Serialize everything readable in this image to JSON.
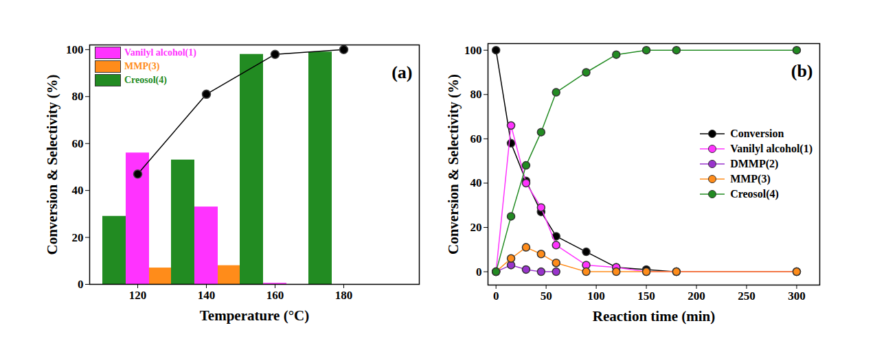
{
  "chart_data": [
    {
      "type": "bar",
      "panel_label": "(a)",
      "x_label": "Temperature (°C)",
      "y_label": "Conversion & Selectivity (%)",
      "x": [
        120,
        140,
        160,
        180
      ],
      "xlim": [
        106,
        202
      ],
      "xticks": [
        120,
        140,
        160,
        180
      ],
      "ylim": [
        0,
        102
      ],
      "yticks": [
        0,
        20,
        40,
        60,
        80,
        100
      ],
      "legend": "upper left",
      "series": [
        {
          "name": "Vanilyl alcohol(1)",
          "color": "#ff33ff",
          "values": [
            56,
            33,
            0.5,
            0
          ]
        },
        {
          "name": "MMP(3)",
          "color": "#ff8c1a",
          "values": [
            7,
            8,
            0,
            0
          ]
        },
        {
          "name": "Creosol(4)",
          "color": "#228b22",
          "values": [
            29,
            53,
            98,
            99
          ]
        }
      ],
      "overlay": {
        "type": "line",
        "color": "#000000",
        "marker": "circle",
        "line_style": "solid",
        "values": [
          47,
          81,
          98,
          100
        ]
      }
    },
    {
      "type": "line",
      "panel_label": "(b)",
      "x_label": "Reaction time (min)",
      "y_label": "Conversion & Selectivity (%)",
      "x": [
        0,
        15,
        30,
        45,
        60,
        90,
        120,
        150,
        180,
        300
      ],
      "xlim": [
        -8,
        323
      ],
      "xticks": [
        0,
        50,
        100,
        150,
        200,
        250,
        300
      ],
      "ylim": [
        -6,
        103
      ],
      "yticks": [
        0,
        20,
        40,
        60,
        80,
        100
      ],
      "legend": "center right",
      "series": [
        {
          "name": "Conversion",
          "color": "#000000",
          "marker": "circle",
          "line_style": "solid",
          "values": [
            100,
            58,
            41,
            27,
            16,
            9,
            2,
            1,
            0,
            0
          ]
        },
        {
          "name": "Vanilyl alcohol(1)",
          "color": "#ff33ff",
          "marker": "circle",
          "line_style": "solid",
          "values": [
            0,
            66,
            40,
            29,
            12,
            3,
            2,
            0,
            0,
            0
          ]
        },
        {
          "name": "DMMP(2)",
          "color": "#9933cc",
          "marker": "circle",
          "line_style": "solid",
          "values": [
            0,
            3,
            1,
            0,
            0,
            null,
            null,
            null,
            null,
            null
          ]
        },
        {
          "name": "MMP(3)",
          "color": "#ff8c1a",
          "marker": "circle",
          "line_style": "solid",
          "values": [
            0,
            6,
            11,
            8,
            4,
            0,
            0,
            0,
            0,
            0
          ]
        },
        {
          "name": "Creosol(4)",
          "color": "#228b22",
          "marker": "circle",
          "line_style": "solid",
          "values": [
            0,
            25,
            48,
            63,
            81,
            90,
            98,
            100,
            100,
            100
          ]
        }
      ]
    }
  ]
}
